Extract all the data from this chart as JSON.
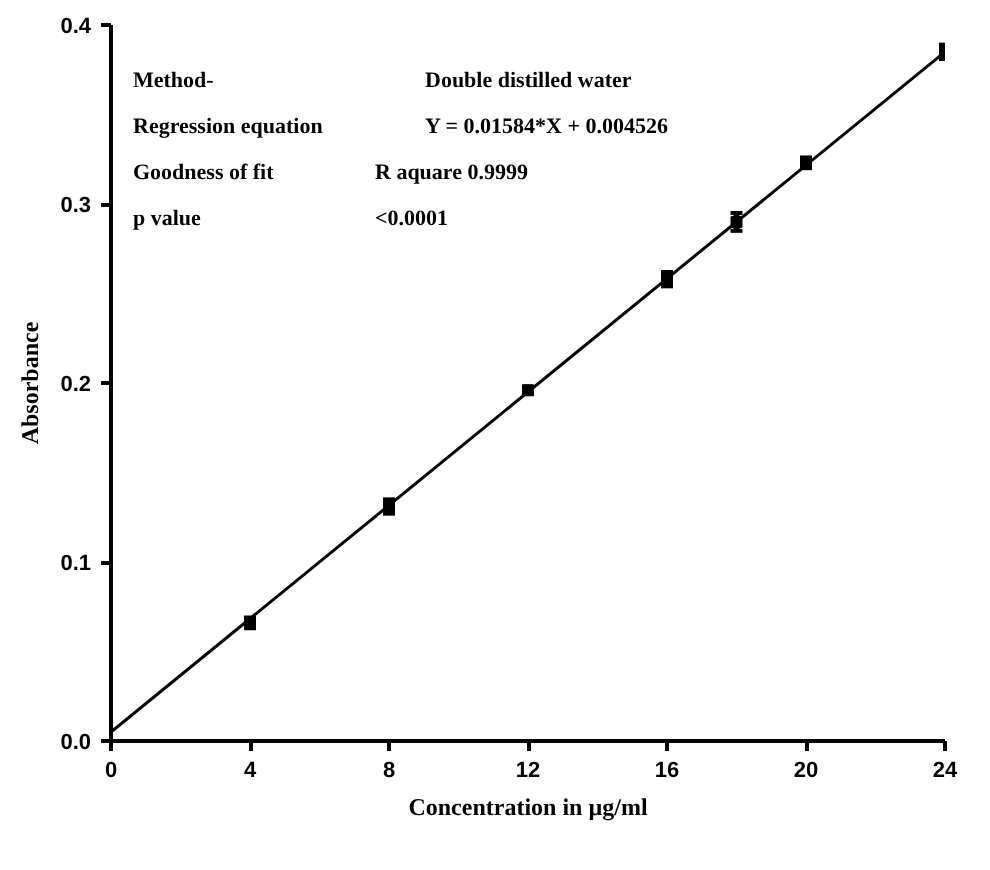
{
  "chart_data": {
    "type": "scatter",
    "xlabel": "Concentration in µg/ml",
    "ylabel": "Absorbance",
    "annotations": [
      "Method-",
      "Double distilled water",
      "Regression equation",
      "Y = 0.01584*X + 0.004526",
      "Goodness of fit",
      "R aquare   0.9999",
      "p value",
      "<0.0001"
    ],
    "x": [
      4,
      8,
      12,
      16,
      18,
      20,
      24
    ],
    "series": [
      {
        "color": "#000000",
        "values": [
          0.066,
          0.131,
          0.196,
          0.258,
          0.29,
          0.323,
          0.385
        ],
        "errors": [
          0.003,
          0.004,
          0.002,
          0.004,
          0.005,
          0.003,
          0.004
        ],
        "marker": "square"
      },
      {
        "type": "line",
        "color": "#000000",
        "x": [
          0,
          24
        ],
        "values": [
          0.005,
          0.385
        ],
        "line_style": "solid"
      }
    ],
    "xlim": [
      0,
      24
    ],
    "ylim": [
      0,
      0.4
    ],
    "xticks": [
      0,
      4,
      8,
      12,
      16,
      20,
      24
    ],
    "yticks": [
      {
        "value": 0,
        "label": "0.0"
      },
      0.1,
      0.2,
      0.3,
      0.4
    ],
    "grid": false
  }
}
